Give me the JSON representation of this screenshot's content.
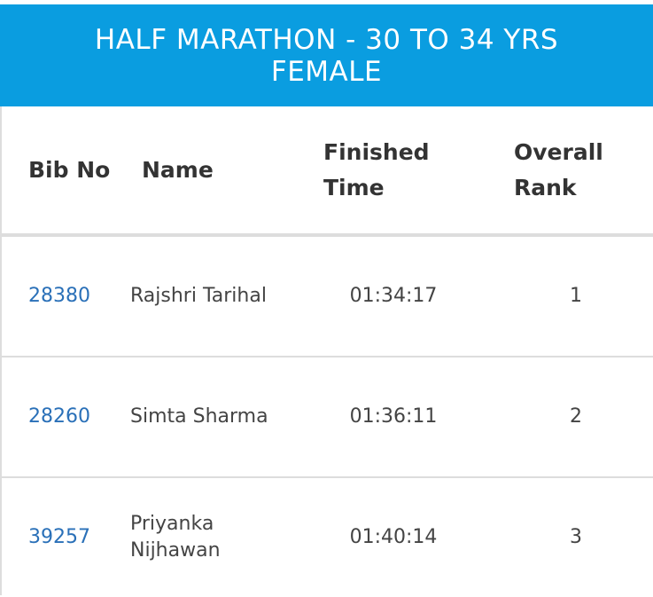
{
  "header": {
    "title": "HALF MARATHON - 30 TO 34 YRS FEMALE"
  },
  "table": {
    "columns": [
      "Bib No",
      "Name",
      "Finished Time",
      "Overall Rank"
    ],
    "rows": [
      [
        "28380",
        "Rajshri Tarihal",
        "01:34:17",
        "1"
      ],
      [
        "28260",
        "Simta Sharma",
        "01:36:11",
        "2"
      ],
      [
        "39257",
        "Priyanka Nijhawan",
        "01:40:14",
        "3"
      ]
    ]
  }
}
